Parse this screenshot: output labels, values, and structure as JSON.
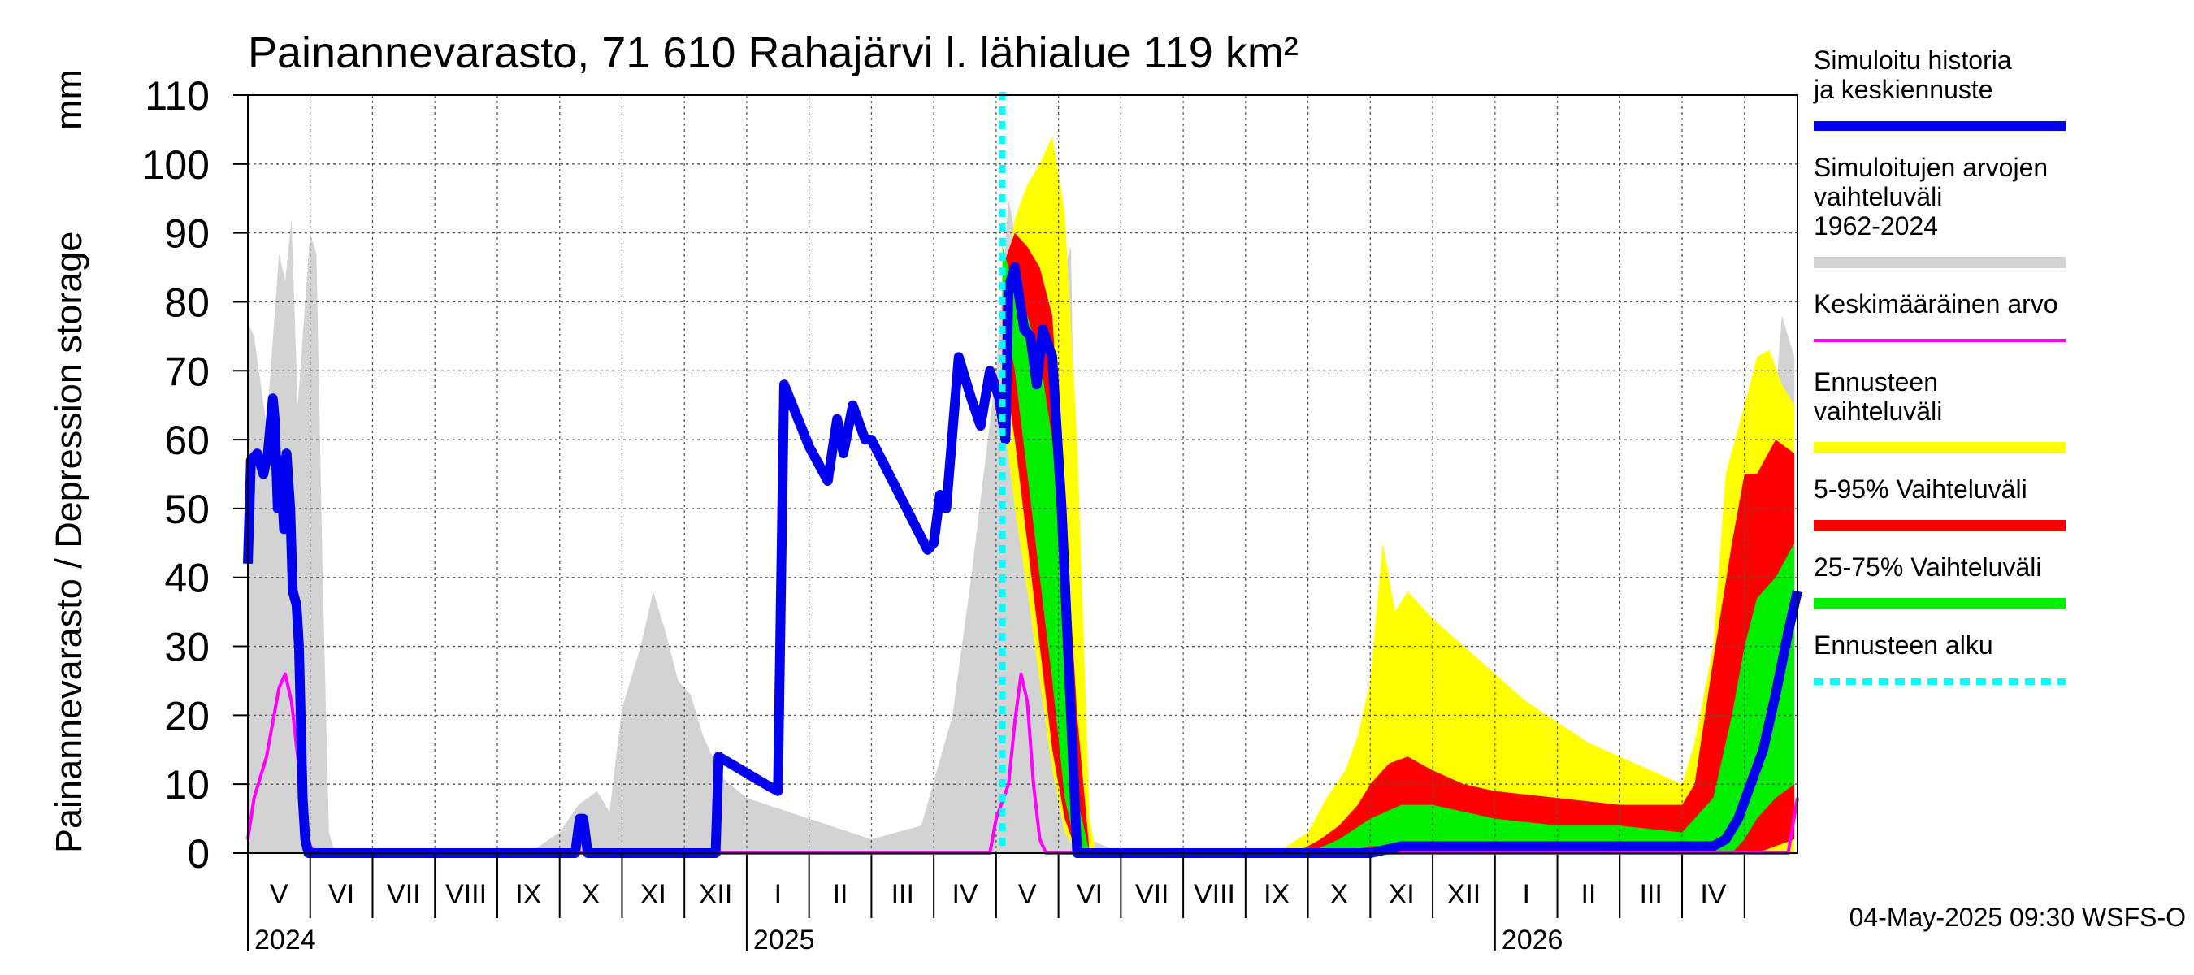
{
  "chart_data": {
    "type": "area",
    "title": "Painannevarasto, 71 610 Rahajärvi l. lähialue 119 km²",
    "ylabel": "Painannevarasto / Depression storage",
    "yunit": "mm",
    "ylim": [
      0,
      110
    ],
    "yticks": [
      0,
      10,
      20,
      30,
      40,
      50,
      60,
      70,
      80,
      90,
      100,
      110
    ],
    "grid": true,
    "x_unit": "months since 2024-04-01",
    "xlim": [
      1.0,
      25.85
    ],
    "month_labels": [
      {
        "label": "V",
        "x": 1.5
      },
      {
        "label": "VI",
        "x": 2.5
      },
      {
        "label": "VII",
        "x": 3.5
      },
      {
        "label": "VIII",
        "x": 4.5
      },
      {
        "label": "IX",
        "x": 5.5
      },
      {
        "label": "X",
        "x": 6.5
      },
      {
        "label": "XI",
        "x": 7.5
      },
      {
        "label": "XII",
        "x": 8.5
      },
      {
        "label": "I",
        "x": 9.5
      },
      {
        "label": "II",
        "x": 10.5
      },
      {
        "label": "III",
        "x": 11.5
      },
      {
        "label": "IV",
        "x": 12.5
      },
      {
        "label": "V",
        "x": 13.5
      },
      {
        "label": "VI",
        "x": 14.5
      },
      {
        "label": "VII",
        "x": 15.5
      },
      {
        "label": "VIII",
        "x": 16.5
      },
      {
        "label": "IX",
        "x": 17.5
      },
      {
        "label": "X",
        "x": 18.5
      },
      {
        "label": "XI",
        "x": 19.5
      },
      {
        "label": "XII",
        "x": 20.5
      },
      {
        "label": "I",
        "x": 21.5
      },
      {
        "label": "II",
        "x": 22.5
      },
      {
        "label": "III",
        "x": 23.5
      },
      {
        "label": "IV",
        "x": 24.5
      }
    ],
    "year_labels": [
      {
        "label": "2024",
        "x": 1.0
      },
      {
        "label": "2025",
        "x": 9.0
      },
      {
        "label": "2026",
        "x": 21.0
      }
    ],
    "forecast_start_x": 13.1,
    "legend": {
      "position": "right",
      "items": [
        {
          "label": "Simuloitu historia ja keskiennuste",
          "color": "#0000ee",
          "style": "thick"
        },
        {
          "label": "Simuloitujen arvojen vaihteluväli 1962-2024",
          "color": "#d3d3d3",
          "style": "band"
        },
        {
          "label": "Keskimääräinen arvo",
          "color": "#ff00ff",
          "style": "line"
        },
        {
          "label": "Ennusteen vaihteluväli",
          "color": "#ffff00",
          "style": "band"
        },
        {
          "label": "5-95% Vaihteluväli",
          "color": "#ff0000",
          "style": "band"
        },
        {
          "label": "25-75% Vaihteluväli",
          "color": "#00ee00",
          "style": "band"
        },
        {
          "label": "Ennusteen alku",
          "color": "#00ffff",
          "style": "dashed"
        }
      ]
    },
    "series": [
      {
        "name": "Simuloitujen arvojen vaihteluväli 1962-2024",
        "kind": "band",
        "color": "#d3d3d3",
        "x": [
          1.0,
          1.1,
          1.3,
          1.5,
          1.6,
          1.7,
          1.8,
          2.0,
          2.1,
          2.2,
          2.3,
          2.4,
          2.5,
          3.0,
          5.5,
          6.0,
          6.3,
          6.6,
          6.8,
          7.0,
          7.3,
          7.5,
          7.7,
          7.9,
          8.1,
          8.3,
          8.6,
          9.0,
          10.0,
          11.0,
          11.8,
          12.3,
          12.6,
          12.8,
          13.0,
          13.2,
          13.5,
          13.8,
          14.0,
          14.1,
          14.2,
          14.3,
          14.5,
          15.0,
          18.0,
          18.5,
          18.8,
          19.0,
          19.3,
          19.6,
          20.0,
          20.5,
          21.0,
          22.0,
          23.0,
          24.0,
          24.5,
          24.8,
          25.0,
          25.2,
          25.4,
          25.6,
          25.8
        ],
        "upper": [
          77,
          75,
          62,
          87,
          83,
          92,
          65,
          90,
          87,
          40,
          3,
          0,
          0,
          0,
          0,
          3,
          7,
          9,
          6,
          21,
          30,
          38,
          32,
          25,
          23,
          17,
          11,
          8,
          5,
          2,
          4,
          20,
          40,
          55,
          70,
          95,
          80,
          90,
          75,
          85,
          88,
          30,
          2,
          0,
          0,
          3,
          8,
          17,
          22,
          28,
          18,
          12,
          8,
          6,
          4,
          3,
          6,
          15,
          22,
          35,
          55,
          78,
          72
        ],
        "lower": [
          0,
          0,
          0,
          0,
          0,
          0,
          0,
          0,
          0,
          0,
          0,
          0,
          0,
          0,
          0,
          0,
          0,
          0,
          0,
          0,
          0,
          0,
          0,
          0,
          0,
          0,
          0,
          0,
          0,
          0,
          0,
          0,
          0,
          0,
          0,
          0,
          0,
          0,
          0,
          0,
          0,
          0,
          0,
          0,
          0,
          0,
          0,
          0,
          0,
          0,
          0,
          0,
          0,
          0,
          0,
          0,
          0,
          0,
          0,
          0,
          0,
          0,
          0
        ]
      },
      {
        "name": "Ennusteen vaihteluväli",
        "kind": "band",
        "color": "#ffff00",
        "x": [
          13.1,
          13.3,
          13.5,
          13.7,
          13.9,
          14.1,
          14.3,
          14.5,
          14.6,
          15.0,
          17.5,
          18.0,
          18.3,
          18.6,
          18.8,
          19.0,
          19.2,
          19.4,
          19.6,
          20.0,
          20.5,
          21.0,
          21.5,
          22.0,
          22.5,
          23.0,
          23.5,
          24.0,
          24.2,
          24.5,
          24.7,
          25.0,
          25.2,
          25.4,
          25.6,
          25.8
        ],
        "upper": [
          80,
          92,
          97,
          100,
          104,
          93,
          60,
          5,
          0,
          0,
          0,
          3,
          8,
          12,
          17,
          25,
          45,
          35,
          38,
          34,
          30,
          26,
          22,
          19,
          16,
          14,
          12,
          10,
          16,
          30,
          55,
          65,
          72,
          73,
          68,
          65
        ],
        "lower": [
          65,
          50,
          38,
          25,
          12,
          3,
          0,
          0,
          0,
          0,
          0,
          0,
          0,
          0,
          0,
          0,
          0,
          0,
          0,
          0,
          0,
          0,
          0,
          0,
          0,
          0,
          0,
          0,
          0,
          0,
          0,
          0,
          0,
          0,
          0,
          0
        ]
      },
      {
        "name": "5-95% Vaihteluväli",
        "kind": "band",
        "color": "#ff0000",
        "x": [
          13.1,
          13.3,
          13.5,
          13.7,
          13.9,
          14.1,
          14.3,
          14.5,
          17.8,
          18.2,
          18.5,
          18.8,
          19.0,
          19.3,
          19.6,
          20.0,
          20.5,
          21.0,
          22.0,
          23.0,
          24.0,
          24.2,
          24.5,
          24.8,
          25.0,
          25.2,
          25.5,
          25.8
        ],
        "upper": [
          85,
          90,
          88,
          85,
          78,
          50,
          20,
          0,
          0,
          2,
          4,
          7,
          10,
          13,
          14,
          12,
          10,
          9,
          8,
          7,
          7,
          10,
          28,
          45,
          55,
          55,
          60,
          58
        ],
        "lower": [
          72,
          60,
          45,
          30,
          15,
          5,
          0,
          0,
          0,
          0,
          0,
          0,
          0,
          0,
          0,
          0,
          0,
          0,
          0,
          0,
          0,
          0,
          0,
          0,
          0,
          0,
          1,
          2
        ]
      },
      {
        "name": "25-75% Vaihteluväli",
        "kind": "band",
        "color": "#00ee00",
        "x": [
          13.1,
          13.3,
          13.5,
          13.7,
          13.9,
          14.1,
          14.3,
          14.5,
          18.0,
          18.5,
          19.0,
          19.5,
          20.0,
          20.5,
          21.0,
          22.0,
          23.0,
          24.0,
          24.5,
          24.8,
          25.0,
          25.2,
          25.5,
          25.8
        ],
        "upper": [
          88,
          82,
          78,
          72,
          60,
          35,
          8,
          0,
          0,
          2,
          5,
          7,
          7,
          6,
          5,
          4,
          4,
          3,
          8,
          20,
          30,
          37,
          40,
          45
        ],
        "lower": [
          80,
          70,
          55,
          40,
          25,
          8,
          0,
          0,
          0,
          0,
          1,
          1,
          1,
          1,
          1,
          1,
          0,
          0,
          0,
          0,
          2,
          5,
          8,
          10
        ]
      },
      {
        "name": "Keskimääräinen arvo",
        "kind": "line",
        "color": "#ff00ff",
        "x": [
          1.0,
          1.1,
          1.3,
          1.5,
          1.6,
          1.7,
          1.8,
          1.9,
          2.0,
          2.1,
          2.2,
          9.0,
          11.0,
          12.5,
          12.9,
          13.0,
          13.2,
          13.3,
          13.4,
          13.5,
          13.6,
          13.7,
          13.8,
          25.7,
          25.85
        ],
        "y": [
          2,
          8,
          14,
          24,
          26,
          22,
          14,
          4,
          1,
          0,
          0,
          0,
          0,
          0,
          0,
          5,
          10,
          19,
          26,
          22,
          10,
          2,
          0,
          0,
          8
        ]
      },
      {
        "name": "Simuloitu historia ja keskiennuste",
        "kind": "line",
        "color": "#0000ee",
        "x": [
          1.0,
          1.05,
          1.15,
          1.25,
          1.32,
          1.4,
          1.43,
          1.48,
          1.52,
          1.58,
          1.62,
          1.68,
          1.72,
          1.78,
          1.82,
          1.88,
          1.92,
          1.97,
          2.02,
          2.1,
          2.15,
          2.2,
          6.2,
          6.25,
          6.32,
          6.38,
          6.45,
          7.0,
          8.0,
          8.5,
          8.55,
          9.3,
          9.5,
          9.6,
          10.0,
          10.3,
          10.45,
          10.55,
          10.7,
          10.9,
          11.0,
          11.9,
          12.0,
          12.1,
          12.2,
          12.4,
          12.6,
          12.75,
          12.9,
          13.05,
          13.15,
          13.2,
          13.3,
          13.45,
          13.55,
          13.65,
          13.75,
          13.9,
          14.05,
          14.2,
          14.3,
          17.5,
          18.0,
          18.5,
          19.0,
          19.5,
          20.0,
          20.5,
          21.0,
          22.0,
          23.0,
          24.0,
          24.5,
          24.7,
          24.9,
          25.1,
          25.3,
          25.5,
          25.7,
          25.85
        ],
        "y": [
          42,
          57,
          58,
          55,
          58,
          66,
          63,
          50,
          57,
          47,
          58,
          50,
          38,
          36,
          30,
          8,
          2,
          0,
          0,
          0,
          0,
          0,
          0,
          0,
          5,
          5,
          0,
          0,
          0,
          0,
          14,
          10,
          9,
          68,
          59,
          54,
          63,
          58,
          65,
          60,
          60,
          44,
          45,
          52,
          50,
          72,
          66,
          62,
          70,
          66,
          60,
          82,
          85,
          76,
          75,
          68,
          76,
          72,
          50,
          20,
          0,
          0,
          0,
          0,
          0,
          1,
          1,
          1,
          1,
          1,
          1,
          1,
          1,
          2,
          5,
          10,
          15,
          23,
          32,
          38
        ]
      }
    ],
    "footer": "04-May-2025 09:30 WSFS-O"
  }
}
